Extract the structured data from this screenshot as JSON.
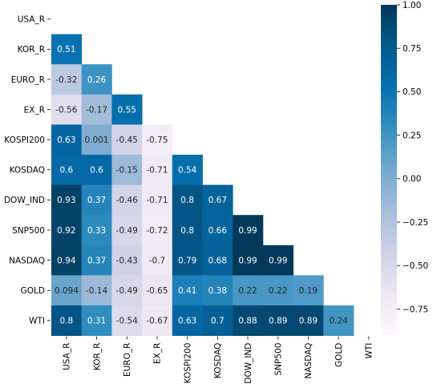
{
  "chart_data": {
    "type": "heatmap",
    "variables": [
      "USA_R",
      "KOR_R",
      "EURO_R",
      "EX_R",
      "KOSPI200",
      "KOSDAQ",
      "DOW_IND",
      "SNP500",
      "NASDAQ",
      "GOLD",
      "WTI"
    ],
    "mask": "upper triangle including diagonal",
    "cells": [
      {
        "row": "KOR_R",
        "col": "USA_R",
        "value": 0.51,
        "label": "0.51"
      },
      {
        "row": "EURO_R",
        "col": "USA_R",
        "value": -0.32,
        "label": "-0.32"
      },
      {
        "row": "EURO_R",
        "col": "KOR_R",
        "value": 0.26,
        "label": "0.26"
      },
      {
        "row": "EX_R",
        "col": "USA_R",
        "value": -0.56,
        "label": "-0.56"
      },
      {
        "row": "EX_R",
        "col": "KOR_R",
        "value": -0.17,
        "label": "-0.17"
      },
      {
        "row": "EX_R",
        "col": "EURO_R",
        "value": 0.55,
        "label": "0.55"
      },
      {
        "row": "KOSPI200",
        "col": "USA_R",
        "value": 0.63,
        "label": "0.63"
      },
      {
        "row": "KOSPI200",
        "col": "KOR_R",
        "value": 0.001,
        "label": "0.001"
      },
      {
        "row": "KOSPI200",
        "col": "EURO_R",
        "value": -0.45,
        "label": "-0.45"
      },
      {
        "row": "KOSPI200",
        "col": "EX_R",
        "value": -0.75,
        "label": "-0.75"
      },
      {
        "row": "KOSDAQ",
        "col": "USA_R",
        "value": 0.6,
        "label": "0.6"
      },
      {
        "row": "KOSDAQ",
        "col": "KOR_R",
        "value": 0.6,
        "label": "0.6"
      },
      {
        "row": "KOSDAQ",
        "col": "EURO_R",
        "value": -0.15,
        "label": "-0.15"
      },
      {
        "row": "KOSDAQ",
        "col": "EX_R",
        "value": -0.71,
        "label": "-0.71"
      },
      {
        "row": "KOSDAQ",
        "col": "KOSPI200",
        "value": 0.54,
        "label": "0.54"
      },
      {
        "row": "DOW_IND",
        "col": "USA_R",
        "value": 0.93,
        "label": "0.93"
      },
      {
        "row": "DOW_IND",
        "col": "KOR_R",
        "value": 0.37,
        "label": "0.37"
      },
      {
        "row": "DOW_IND",
        "col": "EURO_R",
        "value": -0.46,
        "label": "-0.46"
      },
      {
        "row": "DOW_IND",
        "col": "EX_R",
        "value": -0.71,
        "label": "-0.71"
      },
      {
        "row": "DOW_IND",
        "col": "KOSPI200",
        "value": 0.8,
        "label": "0.8"
      },
      {
        "row": "DOW_IND",
        "col": "KOSDAQ",
        "value": 0.67,
        "label": "0.67"
      },
      {
        "row": "SNP500",
        "col": "USA_R",
        "value": 0.92,
        "label": "0.92"
      },
      {
        "row": "SNP500",
        "col": "KOR_R",
        "value": 0.33,
        "label": "0.33"
      },
      {
        "row": "SNP500",
        "col": "EURO_R",
        "value": -0.49,
        "label": "-0.49"
      },
      {
        "row": "SNP500",
        "col": "EX_R",
        "value": -0.72,
        "label": "-0.72"
      },
      {
        "row": "SNP500",
        "col": "KOSPI200",
        "value": 0.8,
        "label": "0.8"
      },
      {
        "row": "SNP500",
        "col": "KOSDAQ",
        "value": 0.66,
        "label": "0.66"
      },
      {
        "row": "SNP500",
        "col": "DOW_IND",
        "value": 0.99,
        "label": "0.99"
      },
      {
        "row": "NASDAQ",
        "col": "USA_R",
        "value": 0.94,
        "label": "0.94"
      },
      {
        "row": "NASDAQ",
        "col": "KOR_R",
        "value": 0.37,
        "label": "0.37"
      },
      {
        "row": "NASDAQ",
        "col": "EURO_R",
        "value": -0.43,
        "label": "-0.43"
      },
      {
        "row": "NASDAQ",
        "col": "EX_R",
        "value": -0.7,
        "label": "-0.7"
      },
      {
        "row": "NASDAQ",
        "col": "KOSPI200",
        "value": 0.79,
        "label": "0.79"
      },
      {
        "row": "NASDAQ",
        "col": "KOSDAQ",
        "value": 0.68,
        "label": "0.68"
      },
      {
        "row": "NASDAQ",
        "col": "DOW_IND",
        "value": 0.99,
        "label": "0.99"
      },
      {
        "row": "NASDAQ",
        "col": "SNP500",
        "value": 0.99,
        "label": "0.99"
      },
      {
        "row": "GOLD",
        "col": "USA_R",
        "value": 0.094,
        "label": "0.094"
      },
      {
        "row": "GOLD",
        "col": "KOR_R",
        "value": -0.14,
        "label": "-0.14"
      },
      {
        "row": "GOLD",
        "col": "EURO_R",
        "value": -0.49,
        "label": "-0.49"
      },
      {
        "row": "GOLD",
        "col": "EX_R",
        "value": -0.65,
        "label": "-0.65"
      },
      {
        "row": "GOLD",
        "col": "KOSPI200",
        "value": 0.41,
        "label": "0.41"
      },
      {
        "row": "GOLD",
        "col": "KOSDAQ",
        "value": 0.38,
        "label": "0.38"
      },
      {
        "row": "GOLD",
        "col": "DOW_IND",
        "value": 0.22,
        "label": "0.22"
      },
      {
        "row": "GOLD",
        "col": "SNP500",
        "value": 0.22,
        "label": "0.22"
      },
      {
        "row": "GOLD",
        "col": "NASDAQ",
        "value": 0.19,
        "label": "0.19"
      },
      {
        "row": "WTI",
        "col": "USA_R",
        "value": 0.8,
        "label": "0.8"
      },
      {
        "row": "WTI",
        "col": "KOR_R",
        "value": 0.31,
        "label": "0.31"
      },
      {
        "row": "WTI",
        "col": "EURO_R",
        "value": -0.54,
        "label": "-0.54"
      },
      {
        "row": "WTI",
        "col": "EX_R",
        "value": -0.67,
        "label": "-0.67"
      },
      {
        "row": "WTI",
        "col": "KOSPI200",
        "value": 0.63,
        "label": "0.63"
      },
      {
        "row": "WTI",
        "col": "KOSDAQ",
        "value": 0.7,
        "label": "0.7"
      },
      {
        "row": "WTI",
        "col": "DOW_IND",
        "value": 0.88,
        "label": "0.88"
      },
      {
        "row": "WTI",
        "col": "SNP500",
        "value": 0.89,
        "label": "0.89"
      },
      {
        "row": "WTI",
        "col": "NASDAQ",
        "value": 0.89,
        "label": "0.89"
      },
      {
        "row": "WTI",
        "col": "GOLD",
        "value": 0.24,
        "label": "0.24"
      }
    ],
    "colorbar": {
      "range": [
        -0.9,
        1.0
      ],
      "ticks": [
        1.0,
        0.75,
        0.5,
        0.25,
        0.0,
        -0.25,
        -0.5,
        -0.75
      ],
      "tick_labels": [
        "1.00",
        "0.75",
        "0.50",
        "0.25",
        "0.00",
        "−0.25",
        "−0.50",
        "−0.75"
      ],
      "colormap": "PuBu",
      "color_stops": [
        "#fff7fb",
        "#ece7f2",
        "#d0d1e6",
        "#a6bddb",
        "#74a9cf",
        "#3690c0",
        "#0570b0",
        "#045a8d",
        "#023858"
      ]
    },
    "label_colors": {
      "light": "#ffffff",
      "dark": "#262626"
    },
    "grid": false,
    "legend": "colorbar right"
  }
}
